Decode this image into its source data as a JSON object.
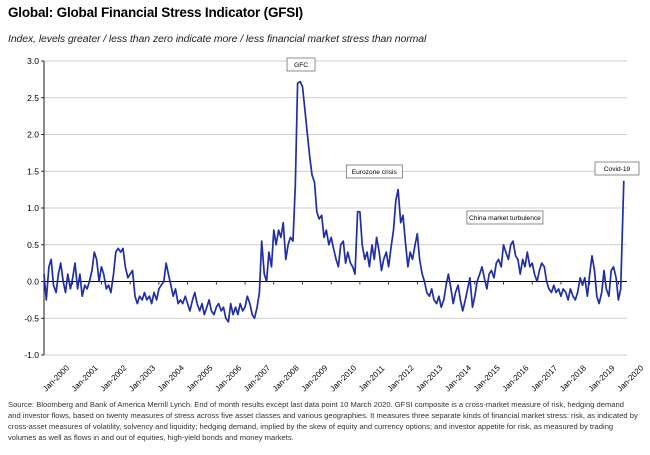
{
  "title": "Global: Global Financial Stress Indicator (GFSI)",
  "subtitle": "Index, levels greater / less than zero indicate more / less financial market stress than normal",
  "source": "Source: Bloomberg and Bank of America Merrill Lynch. End of month results except last data point 10 March 2020. GFSI composite is a cross-market measure of risk, hedging demand and investor flows, based on twenty measures of stress across five asset classes and various geographies. It measures three separate kinds of financial market stress: risk, as indicated by cross-asset measures of volatility, solvency and liquidity; hedging demand, implied by the skew of equity and currency options; and investor appetite for risk, as measured by trading volumes as well as flows in and out of equities, high-yield bonds and money markets.",
  "colors": {
    "line": "#1f2ea8",
    "grid": "#bfbfbf",
    "axis": "#000000"
  },
  "chart_data": {
    "type": "line",
    "title": "Global: Global Financial Stress Indicator (GFSI)",
    "xlabel": "",
    "ylabel": "",
    "ylim": [
      -1.0,
      3.0
    ],
    "yticks": [
      "3.0",
      "2.5",
      "2.0",
      "1.5",
      "1.0",
      "0.5",
      "0.0",
      "-0.5",
      "-1.0"
    ],
    "ytick_values": [
      3.0,
      2.5,
      2.0,
      1.5,
      1.0,
      0.5,
      0.0,
      -0.5,
      -1.0
    ],
    "xticks": [
      "Jan-2000",
      "Jan-2001",
      "Jan-2002",
      "Jan-2003",
      "Jan-2004",
      "Jan-2005",
      "Jan-2006",
      "Jan-2007",
      "Jan-2008",
      "Jan-2009",
      "Jan-2010",
      "Jan-2011",
      "Jan-2012",
      "Jan-2013",
      "Jan-2014",
      "Jan-2015",
      "Jan-2016",
      "Jan-2017",
      "Jan-2018",
      "Jan-2019",
      "Jan-2020"
    ],
    "xtick_values": [
      2000,
      2001,
      2002,
      2003,
      2004,
      2005,
      2006,
      2007,
      2008,
      2009,
      2010,
      2011,
      2012,
      2013,
      2014,
      2015,
      2016,
      2017,
      2018,
      2019,
      2020
    ],
    "xlim": [
      2000,
      2020.3
    ],
    "grid": "horizontal",
    "legend": "none",
    "annotations": [
      {
        "text": "GFC",
        "x": 2008.95,
        "y": 2.72
      },
      {
        "text": "Eurozone crisis",
        "x": 2011.5,
        "y": 1.22
      },
      {
        "text": "China market turbulence",
        "x": 2016.05,
        "y": 0.68
      },
      {
        "text": "Covid-19",
        "x": 2020.2,
        "y": 1.37
      }
    ],
    "series": [
      {
        "values": [
          [
            2000.0,
            0.1
          ],
          [
            2000.08,
            -0.25
          ],
          [
            2000.17,
            0.2
          ],
          [
            2000.25,
            0.3
          ],
          [
            2000.33,
            -0.05
          ],
          [
            2000.42,
            -0.15
          ],
          [
            2000.5,
            0.1
          ],
          [
            2000.58,
            0.25
          ],
          [
            2000.67,
            0.0
          ],
          [
            2000.75,
            -0.15
          ],
          [
            2000.83,
            0.1
          ],
          [
            2000.92,
            -0.1
          ],
          [
            2001.0,
            0.05
          ],
          [
            2001.08,
            0.25
          ],
          [
            2001.17,
            -0.1
          ],
          [
            2001.25,
            0.1
          ],
          [
            2001.33,
            -0.2
          ],
          [
            2001.42,
            -0.05
          ],
          [
            2001.5,
            -0.1
          ],
          [
            2001.58,
            0.0
          ],
          [
            2001.67,
            0.15
          ],
          [
            2001.75,
            0.4
          ],
          [
            2001.83,
            0.3
          ],
          [
            2001.92,
            0.0
          ],
          [
            2002.0,
            0.2
          ],
          [
            2002.08,
            0.1
          ],
          [
            2002.17,
            -0.1
          ],
          [
            2002.25,
            -0.05
          ],
          [
            2002.33,
            -0.15
          ],
          [
            2002.42,
            0.1
          ],
          [
            2002.5,
            0.4
          ],
          [
            2002.58,
            0.45
          ],
          [
            2002.67,
            0.4
          ],
          [
            2002.75,
            0.45
          ],
          [
            2002.83,
            0.2
          ],
          [
            2002.92,
            0.05
          ],
          [
            2003.0,
            0.1
          ],
          [
            2003.08,
            0.15
          ],
          [
            2003.17,
            -0.2
          ],
          [
            2003.25,
            -0.3
          ],
          [
            2003.33,
            -0.2
          ],
          [
            2003.42,
            -0.25
          ],
          [
            2003.5,
            -0.15
          ],
          [
            2003.58,
            -0.25
          ],
          [
            2003.67,
            -0.2
          ],
          [
            2003.75,
            -0.3
          ],
          [
            2003.83,
            -0.15
          ],
          [
            2003.92,
            -0.25
          ],
          [
            2004.0,
            -0.1
          ],
          [
            2004.08,
            -0.05
          ],
          [
            2004.17,
            0.0
          ],
          [
            2004.25,
            0.25
          ],
          [
            2004.33,
            0.1
          ],
          [
            2004.42,
            -0.05
          ],
          [
            2004.5,
            -0.2
          ],
          [
            2004.58,
            -0.1
          ],
          [
            2004.67,
            -0.3
          ],
          [
            2004.75,
            -0.25
          ],
          [
            2004.83,
            -0.3
          ],
          [
            2004.92,
            -0.2
          ],
          [
            2005.0,
            -0.3
          ],
          [
            2005.08,
            -0.4
          ],
          [
            2005.17,
            -0.25
          ],
          [
            2005.25,
            -0.15
          ],
          [
            2005.33,
            -0.3
          ],
          [
            2005.42,
            -0.4
          ],
          [
            2005.5,
            -0.3
          ],
          [
            2005.58,
            -0.45
          ],
          [
            2005.67,
            -0.35
          ],
          [
            2005.75,
            -0.25
          ],
          [
            2005.83,
            -0.4
          ],
          [
            2005.92,
            -0.45
          ],
          [
            2006.0,
            -0.35
          ],
          [
            2006.08,
            -0.3
          ],
          [
            2006.17,
            -0.4
          ],
          [
            2006.25,
            -0.35
          ],
          [
            2006.33,
            -0.5
          ],
          [
            2006.42,
            -0.55
          ],
          [
            2006.5,
            -0.3
          ],
          [
            2006.58,
            -0.45
          ],
          [
            2006.67,
            -0.35
          ],
          [
            2006.75,
            -0.45
          ],
          [
            2006.83,
            -0.3
          ],
          [
            2006.92,
            -0.4
          ],
          [
            2007.0,
            -0.35
          ],
          [
            2007.08,
            -0.2
          ],
          [
            2007.17,
            -0.3
          ],
          [
            2007.25,
            -0.45
          ],
          [
            2007.33,
            -0.5
          ],
          [
            2007.42,
            -0.35
          ],
          [
            2007.5,
            -0.15
          ],
          [
            2007.58,
            0.55
          ],
          [
            2007.67,
            0.1
          ],
          [
            2007.75,
            0.0
          ],
          [
            2007.83,
            0.4
          ],
          [
            2007.92,
            0.2
          ],
          [
            2008.0,
            0.7
          ],
          [
            2008.08,
            0.5
          ],
          [
            2008.17,
            0.7
          ],
          [
            2008.25,
            0.6
          ],
          [
            2008.33,
            0.8
          ],
          [
            2008.42,
            0.3
          ],
          [
            2008.5,
            0.5
          ],
          [
            2008.58,
            0.6
          ],
          [
            2008.67,
            0.55
          ],
          [
            2008.75,
            1.3
          ],
          [
            2008.83,
            2.7
          ],
          [
            2008.92,
            2.72
          ],
          [
            2009.0,
            2.65
          ],
          [
            2009.08,
            2.35
          ],
          [
            2009.17,
            2.0
          ],
          [
            2009.25,
            1.7
          ],
          [
            2009.33,
            1.45
          ],
          [
            2009.42,
            1.35
          ],
          [
            2009.5,
            0.95
          ],
          [
            2009.58,
            0.85
          ],
          [
            2009.67,
            0.9
          ],
          [
            2009.75,
            0.6
          ],
          [
            2009.83,
            0.7
          ],
          [
            2009.92,
            0.5
          ],
          [
            2010.0,
            0.6
          ],
          [
            2010.08,
            0.45
          ],
          [
            2010.17,
            0.3
          ],
          [
            2010.25,
            0.2
          ],
          [
            2010.33,
            0.5
          ],
          [
            2010.42,
            0.55
          ],
          [
            2010.5,
            0.25
          ],
          [
            2010.58,
            0.4
          ],
          [
            2010.67,
            0.25
          ],
          [
            2010.75,
            0.2
          ],
          [
            2010.83,
            0.1
          ],
          [
            2010.92,
            0.95
          ],
          [
            2011.0,
            0.95
          ],
          [
            2011.08,
            0.5
          ],
          [
            2011.17,
            0.3
          ],
          [
            2011.25,
            0.4
          ],
          [
            2011.33,
            0.2
          ],
          [
            2011.42,
            0.5
          ],
          [
            2011.5,
            0.3
          ],
          [
            2011.58,
            0.6
          ],
          [
            2011.67,
            0.4
          ],
          [
            2011.75,
            0.15
          ],
          [
            2011.83,
            0.3
          ],
          [
            2011.92,
            0.4
          ],
          [
            2012.0,
            0.2
          ],
          [
            2012.08,
            0.45
          ],
          [
            2012.17,
            0.7
          ],
          [
            2012.25,
            1.1
          ],
          [
            2012.33,
            1.25
          ],
          [
            2012.42,
            0.8
          ],
          [
            2012.5,
            0.9
          ],
          [
            2012.58,
            0.55
          ],
          [
            2012.67,
            0.2
          ],
          [
            2012.75,
            0.4
          ],
          [
            2012.83,
            0.3
          ],
          [
            2012.92,
            0.5
          ],
          [
            2013.0,
            0.65
          ],
          [
            2013.08,
            0.3
          ],
          [
            2013.17,
            0.1
          ],
          [
            2013.25,
            0.0
          ],
          [
            2013.33,
            -0.15
          ],
          [
            2013.42,
            -0.2
          ],
          [
            2013.5,
            -0.1
          ],
          [
            2013.58,
            -0.25
          ],
          [
            2013.67,
            -0.3
          ],
          [
            2013.75,
            -0.2
          ],
          [
            2013.83,
            -0.35
          ],
          [
            2013.92,
            -0.25
          ],
          [
            2014.0,
            -0.05
          ],
          [
            2014.08,
            0.1
          ],
          [
            2014.17,
            -0.1
          ],
          [
            2014.25,
            -0.3
          ],
          [
            2014.33,
            -0.15
          ],
          [
            2014.42,
            -0.05
          ],
          [
            2014.5,
            -0.25
          ],
          [
            2014.58,
            -0.4
          ],
          [
            2014.67,
            -0.25
          ],
          [
            2014.75,
            -0.1
          ],
          [
            2014.83,
            0.05
          ],
          [
            2014.92,
            -0.35
          ],
          [
            2015.0,
            -0.2
          ],
          [
            2015.08,
            0.0
          ],
          [
            2015.17,
            0.1
          ],
          [
            2015.25,
            0.2
          ],
          [
            2015.33,
            0.05
          ],
          [
            2015.42,
            -0.1
          ],
          [
            2015.5,
            0.1
          ],
          [
            2015.58,
            0.15
          ],
          [
            2015.67,
            0.05
          ],
          [
            2015.75,
            0.25
          ],
          [
            2015.83,
            0.3
          ],
          [
            2015.92,
            0.2
          ],
          [
            2016.0,
            0.5
          ],
          [
            2016.08,
            0.4
          ],
          [
            2016.17,
            0.3
          ],
          [
            2016.25,
            0.5
          ],
          [
            2016.33,
            0.55
          ],
          [
            2016.42,
            0.35
          ],
          [
            2016.5,
            0.3
          ],
          [
            2016.58,
            0.1
          ],
          [
            2016.67,
            0.3
          ],
          [
            2016.75,
            0.2
          ],
          [
            2016.83,
            0.4
          ],
          [
            2016.92,
            0.2
          ],
          [
            2017.0,
            0.25
          ],
          [
            2017.08,
            0.1
          ],
          [
            2017.17,
            0.0
          ],
          [
            2017.25,
            0.15
          ],
          [
            2017.33,
            0.25
          ],
          [
            2017.42,
            0.2
          ],
          [
            2017.5,
            0.0
          ],
          [
            2017.58,
            -0.1
          ],
          [
            2017.67,
            -0.15
          ],
          [
            2017.75,
            -0.05
          ],
          [
            2017.83,
            -0.15
          ],
          [
            2017.92,
            -0.1
          ],
          [
            2018.0,
            -0.2
          ],
          [
            2018.08,
            -0.1
          ],
          [
            2018.17,
            -0.15
          ],
          [
            2018.25,
            -0.25
          ],
          [
            2018.33,
            -0.1
          ],
          [
            2018.42,
            -0.2
          ],
          [
            2018.5,
            -0.25
          ],
          [
            2018.58,
            -0.15
          ],
          [
            2018.67,
            0.05
          ],
          [
            2018.75,
            -0.05
          ],
          [
            2018.83,
            0.05
          ],
          [
            2018.92,
            -0.2
          ],
          [
            2019.0,
            0.1
          ],
          [
            2019.08,
            0.35
          ],
          [
            2019.17,
            0.15
          ],
          [
            2019.25,
            -0.2
          ],
          [
            2019.33,
            -0.3
          ],
          [
            2019.42,
            -0.15
          ],
          [
            2019.5,
            0.15
          ],
          [
            2019.58,
            -0.1
          ],
          [
            2019.67,
            -0.2
          ],
          [
            2019.75,
            0.15
          ],
          [
            2019.83,
            0.2
          ],
          [
            2019.92,
            0.05
          ],
          [
            2020.0,
            -0.25
          ],
          [
            2020.08,
            -0.1
          ],
          [
            2020.19,
            1.37
          ]
        ]
      }
    ]
  }
}
